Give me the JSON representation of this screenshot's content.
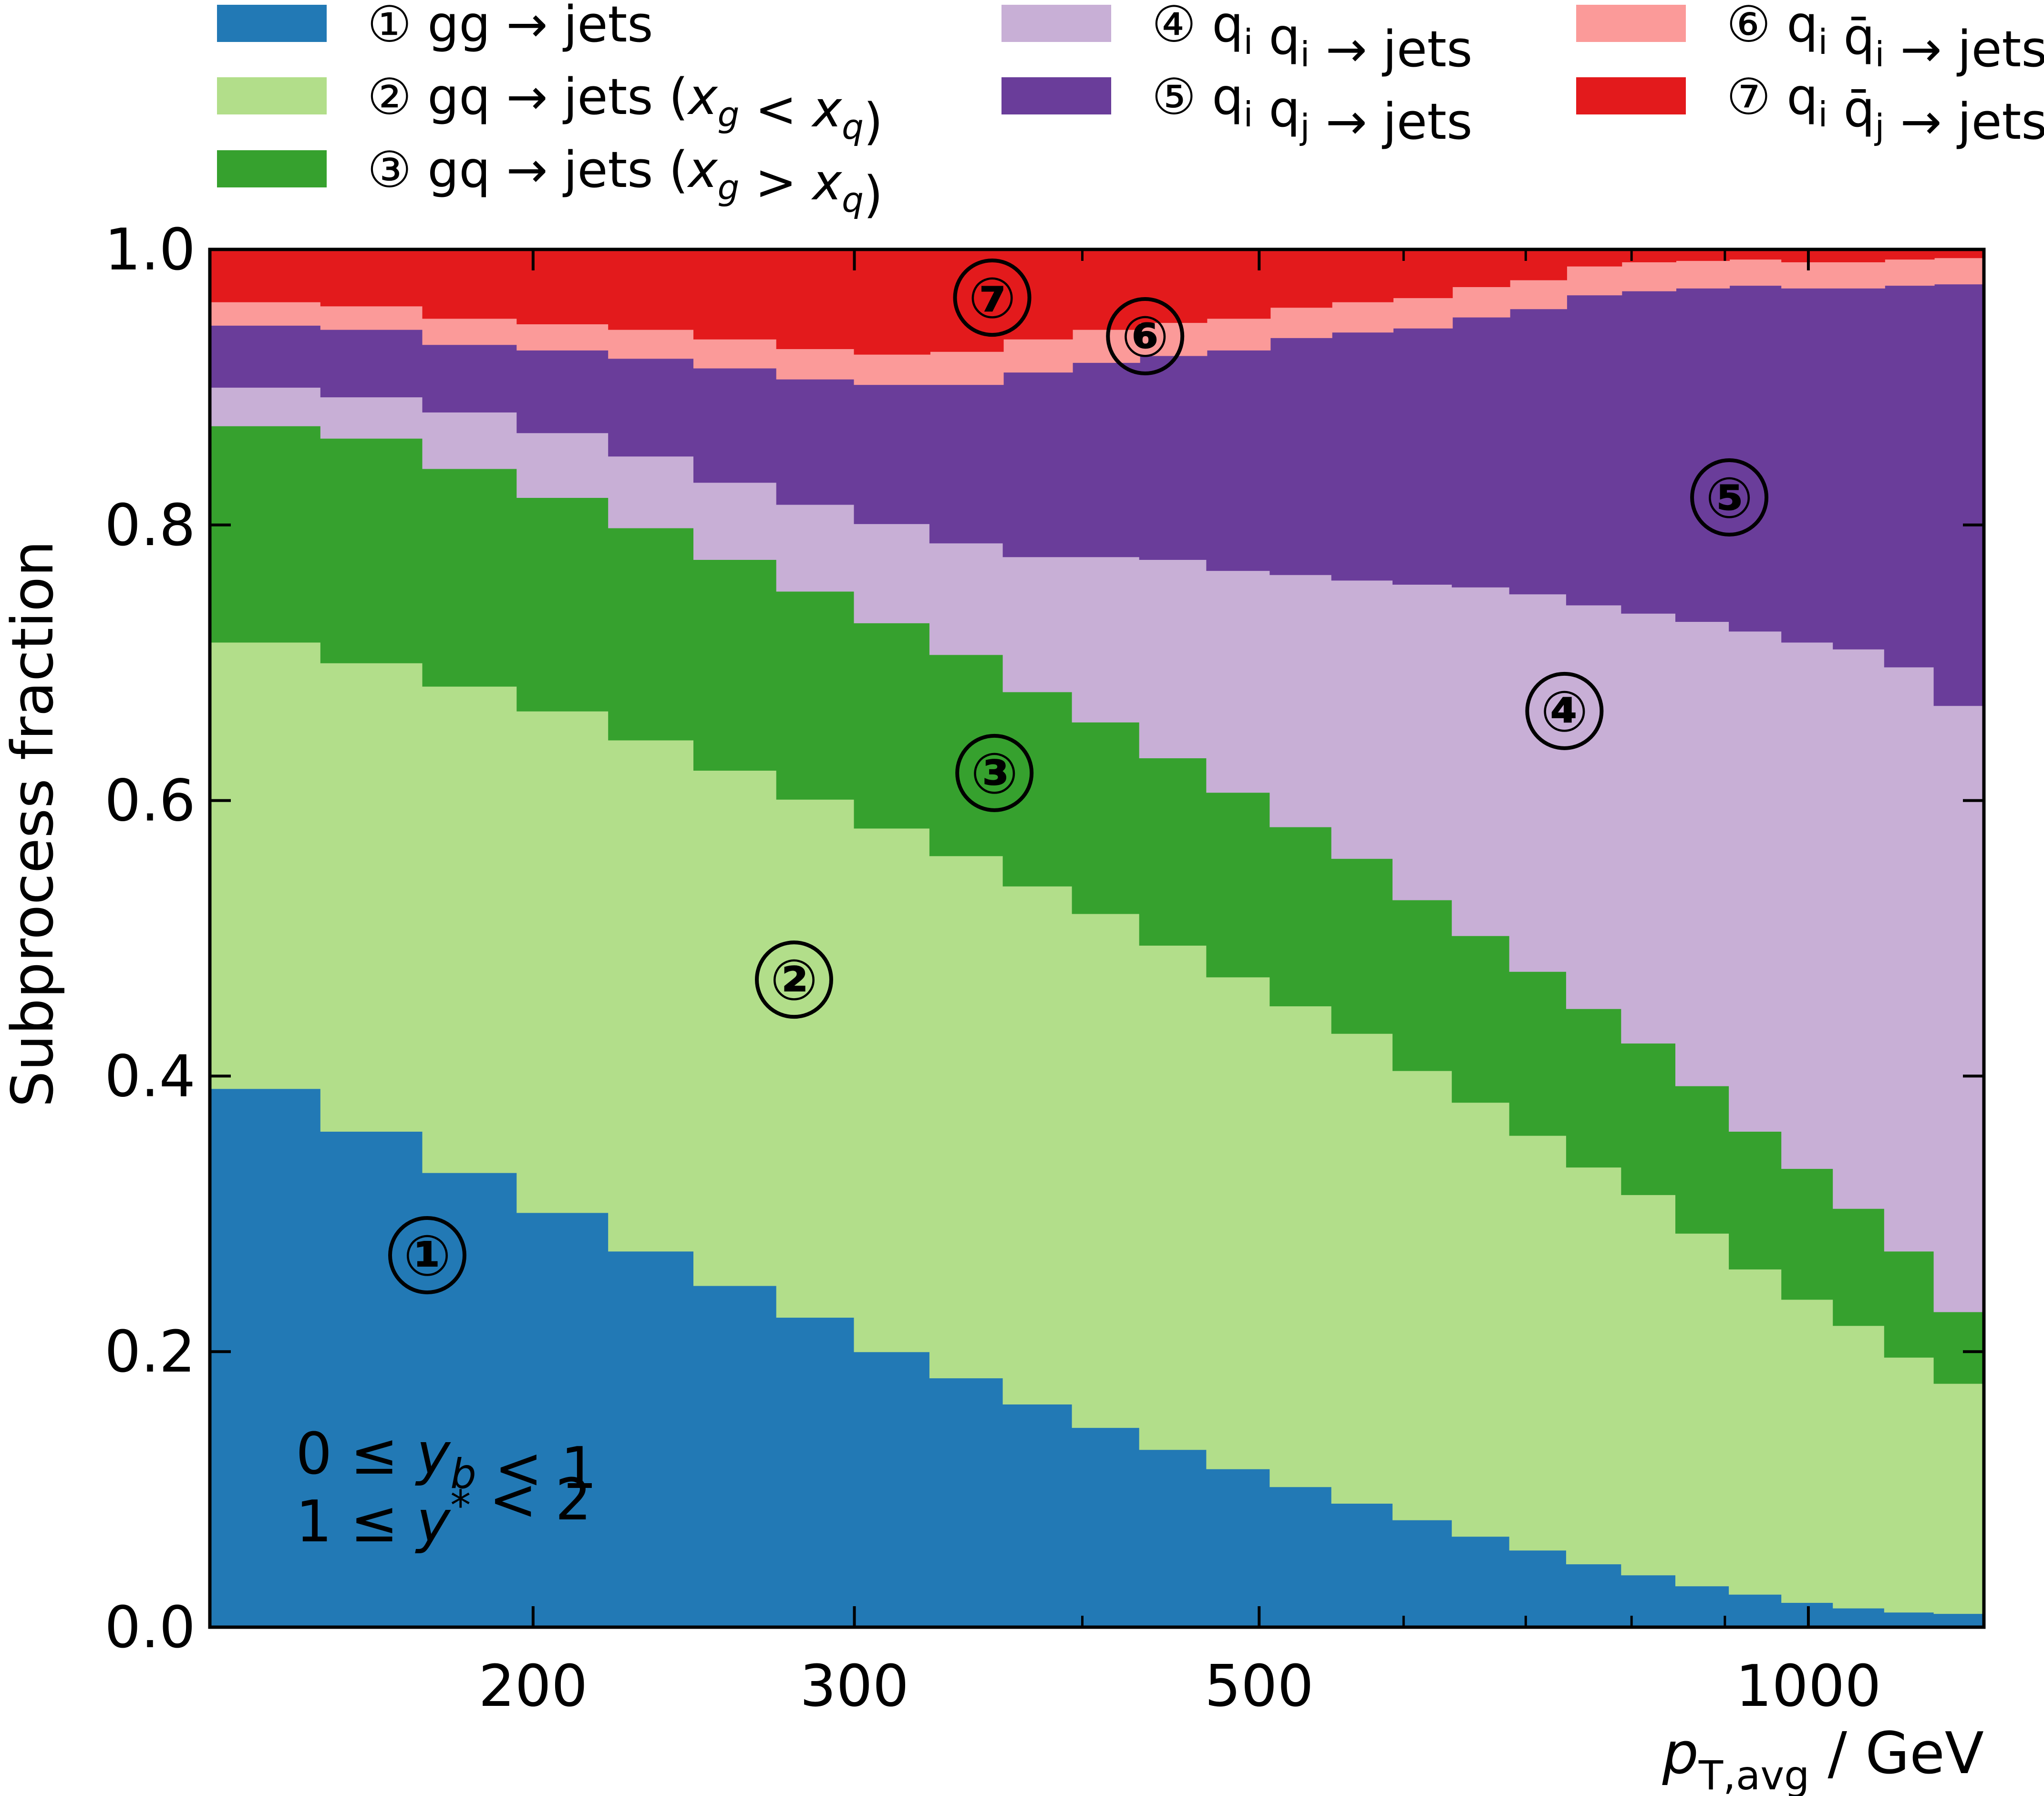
{
  "chart_data": {
    "type": "area",
    "stacked": true,
    "normalized": true,
    "step": true,
    "xscale": "log",
    "x_edges": [
      133,
      153,
      174,
      196,
      220,
      245,
      272,
      300,
      330,
      362,
      395,
      430,
      468,
      507,
      548,
      592,
      638,
      686,
      737,
      790,
      846,
      905,
      967,
      1032,
      1101,
      1172,
      1248
    ],
    "series": [
      {
        "name": "gg → jets",
        "marker": "①",
        "color": "#2279b5",
        "values": [
          0.391,
          0.36,
          0.33,
          0.301,
          0.273,
          0.248,
          0.225,
          0.2,
          0.181,
          0.162,
          0.145,
          0.129,
          0.115,
          0.102,
          0.09,
          0.078,
          0.066,
          0.056,
          0.046,
          0.038,
          0.03,
          0.024,
          0.018,
          0.014,
          0.011,
          0.01
        ]
      },
      {
        "name": "gq → jets (x_g < x_q)",
        "marker": "②",
        "color": "#b2de8a",
        "values": [
          0.324,
          0.34,
          0.353,
          0.364,
          0.371,
          0.374,
          0.376,
          0.38,
          0.379,
          0.376,
          0.373,
          0.366,
          0.357,
          0.349,
          0.341,
          0.326,
          0.315,
          0.301,
          0.288,
          0.276,
          0.256,
          0.236,
          0.22,
          0.205,
          0.185,
          0.167
        ]
      },
      {
        "name": "gq → jets (x_g > x_q)",
        "marker": "③",
        "color": "#36a12e",
        "values": [
          0.157,
          0.163,
          0.158,
          0.155,
          0.154,
          0.153,
          0.151,
          0.149,
          0.146,
          0.141,
          0.139,
          0.136,
          0.134,
          0.13,
          0.127,
          0.124,
          0.121,
          0.119,
          0.115,
          0.11,
          0.107,
          0.1,
          0.095,
          0.085,
          0.077,
          0.052
        ]
      },
      {
        "name": "q_i q_i → jets",
        "marker": "④",
        "color": "#c8afd6",
        "values": [
          0.028,
          0.03,
          0.041,
          0.047,
          0.052,
          0.056,
          0.063,
          0.072,
          0.081,
          0.098,
          0.12,
          0.144,
          0.161,
          0.183,
          0.202,
          0.229,
          0.253,
          0.274,
          0.293,
          0.312,
          0.337,
          0.363,
          0.382,
          0.406,
          0.424,
          0.44
        ]
      },
      {
        "name": "q_i q_j → jets",
        "marker": "⑤",
        "color": "#6a3d9a",
        "values": [
          0.045,
          0.049,
          0.049,
          0.06,
          0.071,
          0.083,
          0.091,
          0.101,
          0.115,
          0.134,
          0.141,
          0.148,
          0.16,
          0.172,
          0.18,
          0.186,
          0.196,
          0.207,
          0.225,
          0.234,
          0.242,
          0.251,
          0.257,
          0.262,
          0.277,
          0.306
        ]
      },
      {
        "name": "q_i q̄_i → jets",
        "marker": "⑥",
        "color": "#fb9a99",
        "values": [
          0.017,
          0.017,
          0.019,
          0.019,
          0.021,
          0.021,
          0.022,
          0.022,
          0.024,
          0.024,
          0.024,
          0.024,
          0.023,
          0.022,
          0.022,
          0.022,
          0.022,
          0.021,
          0.021,
          0.021,
          0.02,
          0.019,
          0.019,
          0.019,
          0.019,
          0.019
        ]
      },
      {
        "name": "q_i q̄_j → jets",
        "marker": "⑦",
        "color": "#e31a1c",
        "values": [
          0.038,
          0.041,
          0.05,
          0.054,
          0.058,
          0.065,
          0.072,
          0.076,
          0.074,
          0.065,
          0.058,
          0.053,
          0.05,
          0.042,
          0.038,
          0.035,
          0.027,
          0.022,
          0.012,
          0.009,
          0.008,
          0.007,
          0.009,
          0.009,
          0.007,
          0.006
        ]
      }
    ],
    "xlabel": "p_T,avg / GeV",
    "ylabel": "Subprocess fraction",
    "xlim": [
      133,
      1248
    ],
    "ylim": [
      0,
      1
    ],
    "xticks_labeled": [
      "200",
      "300",
      "500",
      "1000"
    ],
    "yticks_labeled": [
      "0.0",
      "0.2",
      "0.4",
      "0.6",
      "0.8",
      "1.0"
    ],
    "annotations": [
      "0 ≤ y_b < 1",
      "1 ≤ y* < 2"
    ],
    "region_labels": [
      {
        "text": "①",
        "x": 175,
        "y": 0.27
      },
      {
        "text": "②",
        "x": 278,
        "y": 0.47
      },
      {
        "text": "③",
        "x": 358,
        "y": 0.62
      },
      {
        "text": "④",
        "x": 735,
        "y": 0.665
      },
      {
        "text": "⑤",
        "x": 905,
        "y": 0.82
      },
      {
        "text": "⑥",
        "x": 433,
        "y": 0.937
      },
      {
        "text": "⑦",
        "x": 357,
        "y": 0.965
      }
    ],
    "legend_position": "above",
    "grid": false
  }
}
